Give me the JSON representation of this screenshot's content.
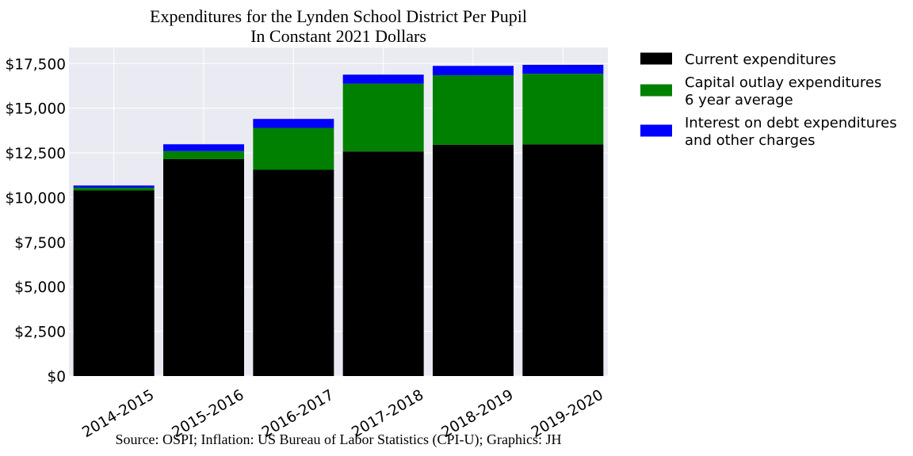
{
  "chart_data": {
    "type": "bar",
    "stacked": true,
    "title": "Expenditures for the Lynden School District Per Pupil",
    "subtitle": "In Constant 2021 Dollars",
    "source": "Source: OSPI; Inflation: US Bureau of Labor Statistics (CPI-U); Graphics: JH",
    "xlabel": "",
    "ylabel": "",
    "ylim": [
      0,
      18400
    ],
    "y_ticks": [
      0,
      2500,
      5000,
      7500,
      10000,
      12500,
      15000,
      17500
    ],
    "y_tick_labels": [
      "$0",
      "$2,500",
      "$5,000",
      "$7,500",
      "$10,000",
      "$12,500",
      "$15,000",
      "$17,500"
    ],
    "categories": [
      "2014-2015",
      "2015-2016",
      "2016-2017",
      "2017-2018",
      "2018-2019",
      "2019-2020"
    ],
    "series": [
      {
        "name": "Current expenditures",
        "color": "#000000",
        "values": [
          10400,
          12150,
          11550,
          12580,
          12950,
          12980
        ]
      },
      {
        "name": "Capital outlay expenditures\n6 year average",
        "color": "#008000",
        "values": [
          150,
          450,
          2350,
          3800,
          3900,
          3950
        ]
      },
      {
        "name": "Interest on debt expenditures\nand other charges",
        "color": "#0000ff",
        "values": [
          120,
          380,
          500,
          500,
          520,
          500
        ]
      }
    ],
    "grid": true,
    "legend_position": "outside-right-top",
    "plot_background": "#eaeaf2",
    "grid_color": "#ffffff"
  }
}
